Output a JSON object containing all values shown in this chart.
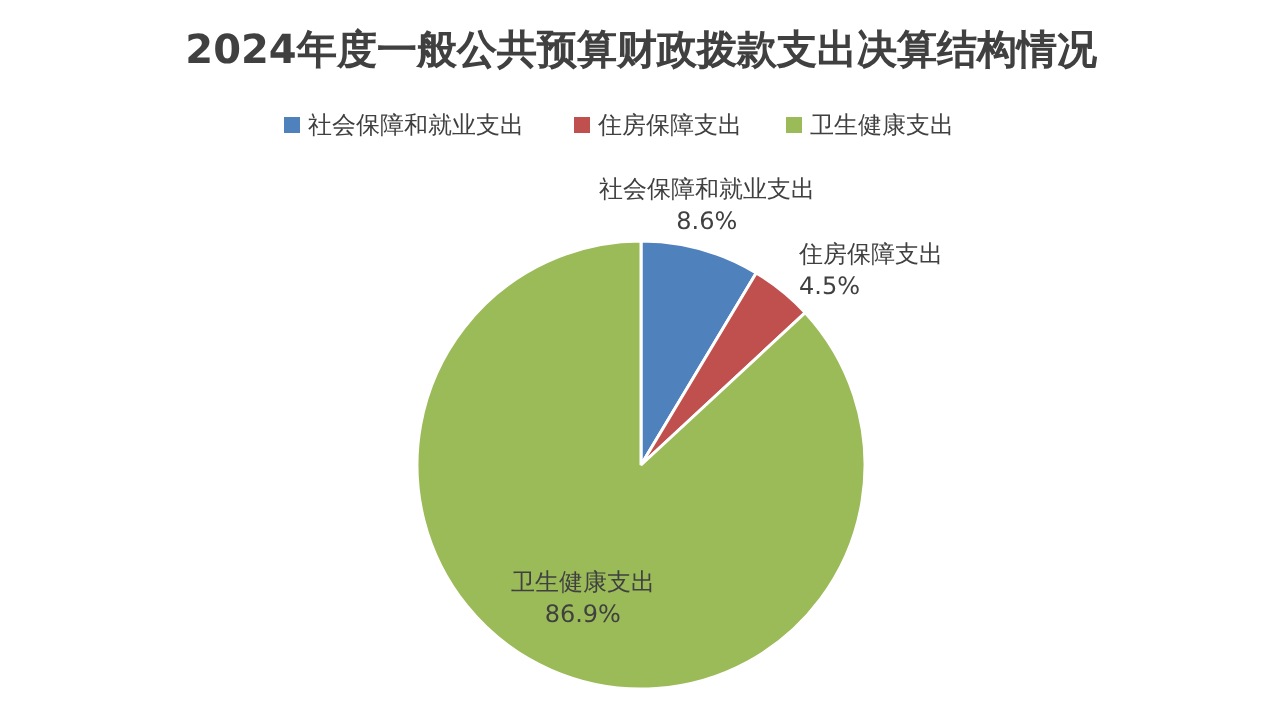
{
  "chart_data": {
    "type": "pie",
    "title": "2024年度一般公共预算财政拨款支出决算结构情况",
    "categories": [
      "社会保障和就业支出",
      "住房保障支出",
      "卫生健康支出"
    ],
    "values": [
      8.6,
      4.5,
      86.9
    ],
    "colors": [
      "#4f81bd",
      "#c0504d",
      "#9bbb59"
    ],
    "value_labels": [
      "8.6%",
      "4.5%",
      "86.9%"
    ],
    "legend": "top"
  }
}
